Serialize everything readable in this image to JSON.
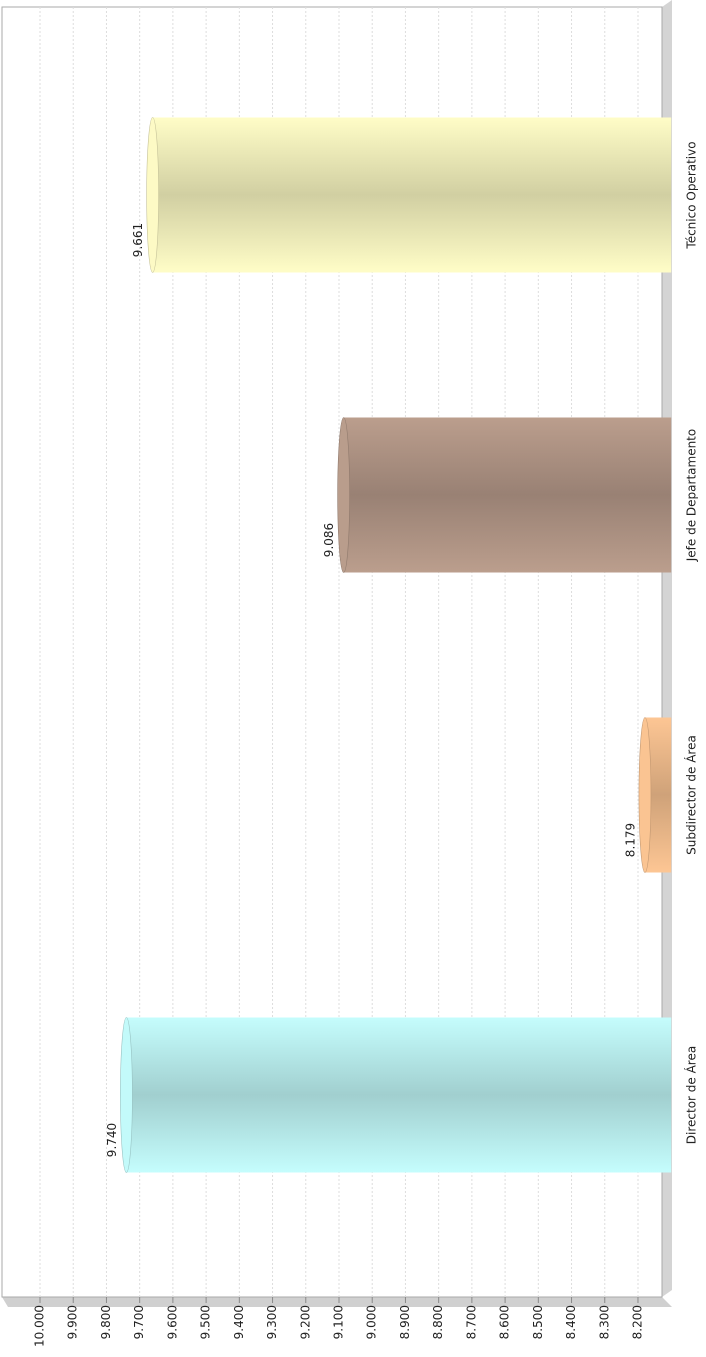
{
  "chart_data": {
    "type": "bar",
    "categories": [
      "Director de Área",
      "Subdirector de Área",
      "Jefe de Departamento",
      "Técnico Operativo"
    ],
    "values": [
      9.74,
      8.179,
      9.086,
      9.661
    ],
    "value_labels": [
      "9.740",
      "8.179",
      "9.086",
      "9.661"
    ],
    "colors": [
      "#bdf3f3",
      "#f3be8e",
      "#b49888",
      "#f6f3bf"
    ],
    "ylim": [
      8.1,
      10.05
    ],
    "yticks": [
      {
        "value": 8.2,
        "label": "8.200"
      },
      {
        "value": 8.3,
        "label": "8.300"
      },
      {
        "value": 8.4,
        "label": "8.400"
      },
      {
        "value": 8.5,
        "label": "8.500"
      },
      {
        "value": 8.6,
        "label": "8.600"
      },
      {
        "value": 8.7,
        "label": "8.700"
      },
      {
        "value": 8.8,
        "label": "8.800"
      },
      {
        "value": 8.9,
        "label": "8.900"
      },
      {
        "value": 9.0,
        "label": "9.000"
      },
      {
        "value": 9.1,
        "label": "9.100"
      },
      {
        "value": 9.2,
        "label": "9.200"
      },
      {
        "value": 9.3,
        "label": "9.300"
      },
      {
        "value": 9.4,
        "label": "9.400"
      },
      {
        "value": 9.5,
        "label": "9.500"
      },
      {
        "value": 9.6,
        "label": "9.600"
      },
      {
        "value": 9.7,
        "label": "9.700"
      },
      {
        "value": 9.8,
        "label": "9.800"
      },
      {
        "value": 9.9,
        "label": "9.900"
      },
      {
        "value": 10.0,
        "label": "10.000"
      }
    ],
    "grid": true
  }
}
